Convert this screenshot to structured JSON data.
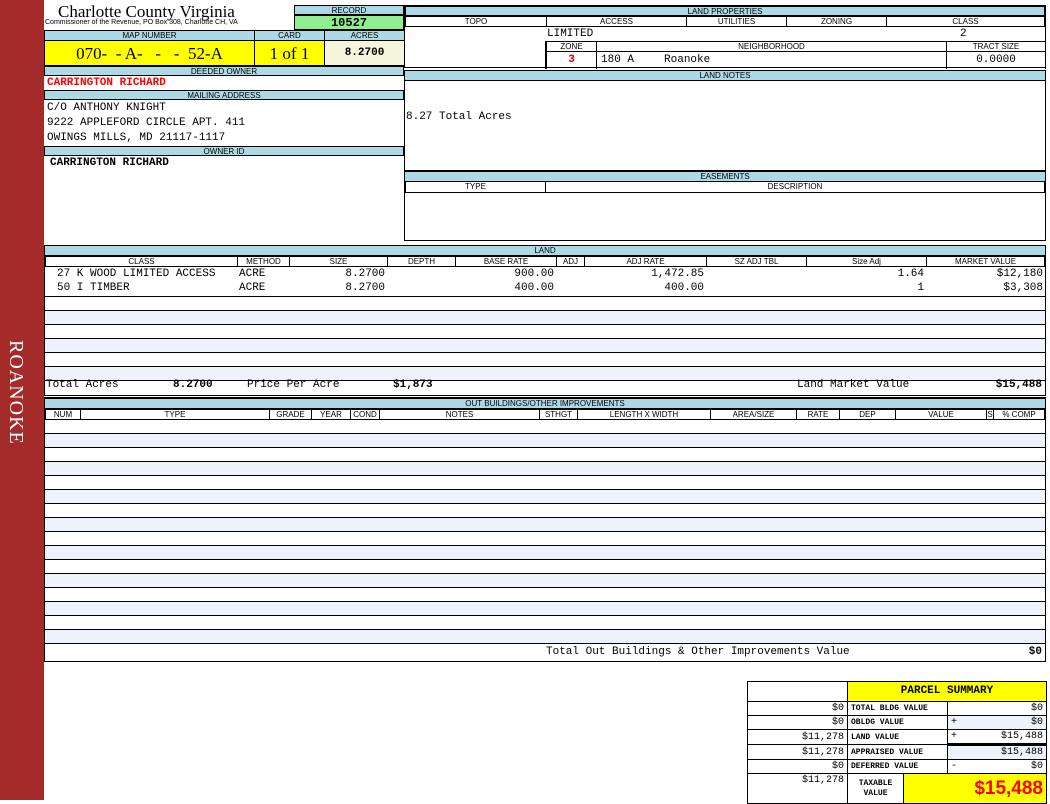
{
  "sidebar": {
    "label": "ROANOKE"
  },
  "header": {
    "title": "Charlotte County Virginia",
    "subtitle": "Commissioner of the Revenue, PO Box 308, Charlotte CH, VA",
    "record_label": "RECORD",
    "record": "10527"
  },
  "parcel": {
    "map_label": "MAP NUMBER",
    "map_number": "070-  - A-   -   -  52-A",
    "card_label": "CARD",
    "card": "1 of 1",
    "acres_label": "ACRES",
    "acres": "8.2700"
  },
  "owner": {
    "deeded_label": "DEEDED OWNER",
    "deeded": "CARRINGTON RICHARD",
    "mailing_label": "MAILING ADDRESS",
    "address": [
      "C/O ANTHONY KNIGHT",
      "9222 APPLEFORD CIRCLE APT. 411",
      "OWINGS MILLS, MD 21117-1117"
    ],
    "id_label": "OWNER ID",
    "id": "CARRINGTON RICHARD"
  },
  "land_properties": {
    "title": "LAND PROPERTIES",
    "headers": [
      "TOPO",
      "ACCESS",
      "UTILITIES",
      "ZONING",
      "CLASS"
    ],
    "access": "LIMITED",
    "class": "2",
    "zone_label": "ZONE",
    "neighborhood_label": "NEIGHBORHOOD",
    "tract_label": "TRACT SIZE",
    "zone": "3",
    "neighborhood_code": "180 A",
    "neighborhood": "Roanoke",
    "tract_size": "0.0000"
  },
  "land_notes": {
    "title": "LAND NOTES",
    "text": "8.27 Total Acres"
  },
  "easements": {
    "title": "EASEMENTS",
    "headers": [
      "TYPE",
      "DESCRIPTION"
    ]
  },
  "land": {
    "title": "LAND",
    "headers": [
      "CLASS",
      "METHOD",
      "SIZE",
      "DEPTH",
      "BASE RATE",
      "ADJ",
      "ADJ RATE",
      "SZ ADJ TBL",
      "Size Adj",
      "MARKET VALUE"
    ],
    "rows": [
      [
        "27 K WOOD LIMITED ACCESS",
        "ACRE",
        "8.2700",
        "",
        "900.00",
        "",
        "1,472.85",
        "",
        "1.64",
        "$12,180"
      ],
      [
        "50 I TIMBER",
        "ACRE",
        "8.2700",
        "",
        "400.00",
        "",
        "400.00",
        "",
        "1",
        "$3,308"
      ]
    ],
    "total_acres_label": "Total Acres",
    "total_acres": "8.2700",
    "ppa_label": "Price Per Acre",
    "ppa": "$1,873",
    "lmv_label": "Land Market Value",
    "lmv": "$15,488"
  },
  "outbuildings": {
    "title": "OUT BUILDINGS/OTHER IMPROVEMENTS",
    "headers": [
      "NUM",
      "TYPE",
      "GRADE",
      "YEAR",
      "COND",
      "NOTES",
      "STHGT",
      "LENGTH X WIDTH",
      "AREA/SIZE",
      "RATE",
      "DEP",
      "VALUE",
      "S",
      "% COMP"
    ],
    "total_label": "Total Out Buildings & Other Improvements Value",
    "total": "$0"
  },
  "summary": {
    "title": "PARCEL SUMMARY",
    "rows": [
      {
        "prev": "$0",
        "label": "TOTAL BLDG VALUE",
        "op": "",
        "value": "$0"
      },
      {
        "prev": "$0",
        "label": "OBLDG VALUE",
        "op": "+",
        "value": "$0"
      },
      {
        "prev": "$11,278",
        "label": "LAND VALUE",
        "op": "+",
        "value": "$15,488"
      },
      {
        "prev": "$11,278",
        "label": "APPRAISED VALUE",
        "op": "",
        "value": "$15,488"
      },
      {
        "prev": "$0",
        "label": "DEFERRED VALUE",
        "op": "-",
        "value": "$0"
      }
    ],
    "taxable_prev": "$11,278",
    "taxable_label": "TAXABLE VALUE",
    "taxable": "$15,488"
  },
  "colors": {
    "sidebar": "#a52a2a",
    "header": "#add8e6",
    "highlight": "#ffff00",
    "record": "#90ee90",
    "owner_red": "#ff0000"
  }
}
